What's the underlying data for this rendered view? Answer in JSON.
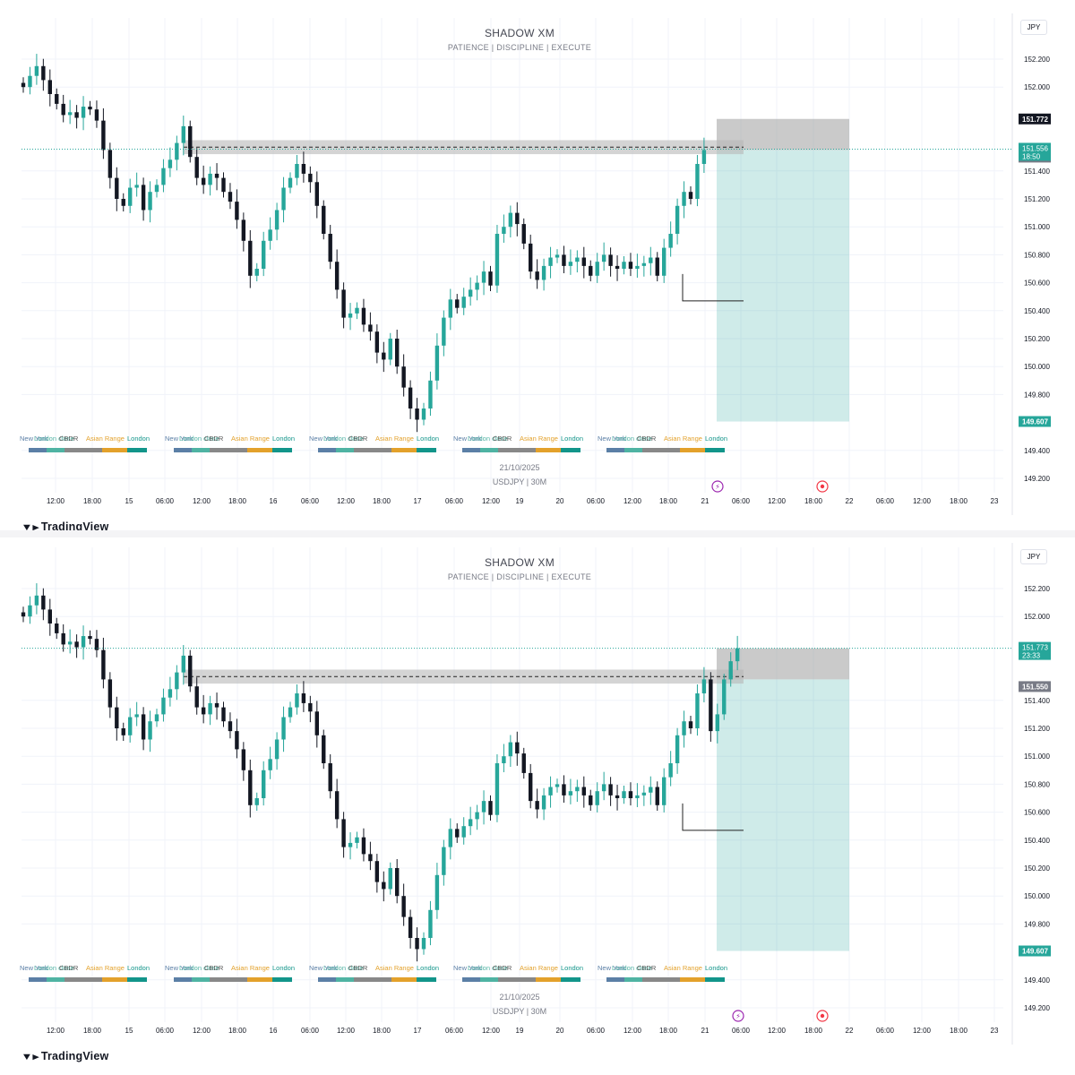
{
  "header": {
    "title": "SHADOW XM",
    "subtitle": "PATIENCE  |  DISCIPLINE  |  EXECUTE",
    "currency": "JPY"
  },
  "watermark": {
    "date": "21/10/2025",
    "symbol": "USDJPY  |  30M"
  },
  "brand": {
    "name": "TradingView",
    "icon": "tradingview-logo"
  },
  "price_axis_ticks": [
    "152.200",
    "152.000",
    "151.400",
    "151.200",
    "151.000",
    "150.800",
    "150.600",
    "150.400",
    "150.200",
    "150.000",
    "149.800",
    "149.400",
    "149.200"
  ],
  "time_axis_labels": [
    "12:00",
    "18:00",
    "15",
    "06:00",
    "12:00",
    "18:00",
    "16",
    "06:00",
    "12:00",
    "18:00",
    "17",
    "06:00",
    "12:00",
    "19",
    "20",
    "06:00",
    "12:00",
    "18:00",
    "21",
    "06:00",
    "12:00",
    "18:00",
    "22",
    "06:00",
    "12:00",
    "18:00",
    "23"
  ],
  "session_labels": [
    "New York",
    "London close",
    "CBDR",
    "Asian Range",
    "London"
  ],
  "session_colors": {
    "newyork": "#5b7fa6",
    "londonclose": "#4fb3a3",
    "cbdr": "#888888",
    "asian": "#e3a12b",
    "london": "#12958a"
  },
  "colors": {
    "up": "#26a69a",
    "down": "#131722",
    "target_zone": "#26a69a",
    "stop_zone": "#9e9e9e",
    "supply_zone": "#b8b8b8",
    "event_purple": "#9c27b0",
    "event_red": "#f23645"
  },
  "panels": [
    {
      "current_price": "151.556",
      "countdown": "18:50",
      "labels": {
        "stop": "151.772",
        "entry": "151.550",
        "target": "149.607"
      }
    },
    {
      "current_price": "151.773",
      "countdown": "23:33",
      "labels": {
        "stop": "151.772",
        "entry": "151.550",
        "target": "149.607"
      }
    }
  ],
  "chart_data": [
    {
      "type": "candlestick",
      "symbol": "USDJPY",
      "timeframe": "30M",
      "y_axis": {
        "min": 149.1,
        "max": 152.3,
        "ticks": [
          152.2,
          152.0,
          151.4,
          151.2,
          151.0,
          150.8,
          150.6,
          150.4,
          150.2,
          150.0,
          149.8,
          149.4,
          149.2
        ]
      },
      "closes": [
        152.0,
        152.08,
        152.15,
        152.05,
        151.95,
        151.88,
        151.8,
        151.82,
        151.78,
        151.86,
        151.84,
        151.76,
        151.55,
        151.35,
        151.2,
        151.15,
        151.28,
        151.3,
        151.12,
        151.25,
        151.3,
        151.42,
        151.48,
        151.6,
        151.72,
        151.5,
        151.35,
        151.3,
        151.38,
        151.35,
        151.25,
        151.18,
        151.05,
        150.9,
        150.65,
        150.7,
        150.9,
        150.98,
        151.12,
        151.28,
        151.35,
        151.45,
        151.38,
        151.32,
        151.15,
        150.95,
        150.75,
        150.55,
        150.35,
        150.38,
        150.42,
        150.3,
        150.25,
        150.1,
        150.05,
        150.2,
        150.0,
        149.85,
        149.7,
        149.62,
        149.7,
        149.9,
        150.15,
        150.35,
        150.48,
        150.42,
        150.5,
        150.55,
        150.6,
        150.68,
        150.58,
        150.95,
        151.0,
        151.1,
        151.02,
        150.88,
        150.68,
        150.62,
        150.72,
        150.78,
        150.8,
        150.72,
        150.75,
        150.78,
        150.72,
        150.65,
        150.75,
        150.8,
        150.72,
        150.7,
        150.75,
        150.7,
        150.72,
        150.74,
        150.78,
        150.65,
        150.85,
        150.95,
        151.15,
        151.25,
        151.2,
        151.45,
        151.55
      ],
      "last_price": 151.556,
      "supply_zone": [
        151.52,
        151.62
      ],
      "entry_level": 151.55,
      "position": {
        "type": "short",
        "entry": 151.55,
        "stop": 151.772,
        "target": 149.607
      },
      "horizontal_line": 150.47
    },
    {
      "type": "candlestick",
      "symbol": "USDJPY",
      "timeframe": "30M",
      "y_axis": {
        "min": 149.1,
        "max": 152.3,
        "ticks": [
          152.2,
          152.0,
          151.4,
          151.2,
          151.0,
          150.8,
          150.6,
          150.4,
          150.2,
          150.0,
          149.8,
          149.4,
          149.2
        ]
      },
      "closes": [
        152.0,
        152.08,
        152.15,
        152.05,
        151.95,
        151.88,
        151.8,
        151.82,
        151.78,
        151.86,
        151.84,
        151.76,
        151.55,
        151.35,
        151.2,
        151.15,
        151.28,
        151.3,
        151.12,
        151.25,
        151.3,
        151.42,
        151.48,
        151.6,
        151.72,
        151.5,
        151.35,
        151.3,
        151.38,
        151.35,
        151.25,
        151.18,
        151.05,
        150.9,
        150.65,
        150.7,
        150.9,
        150.98,
        151.12,
        151.28,
        151.35,
        151.45,
        151.38,
        151.32,
        151.15,
        150.95,
        150.75,
        150.55,
        150.35,
        150.38,
        150.42,
        150.3,
        150.25,
        150.1,
        150.05,
        150.2,
        150.0,
        149.85,
        149.7,
        149.62,
        149.7,
        149.9,
        150.15,
        150.35,
        150.48,
        150.42,
        150.5,
        150.55,
        150.6,
        150.68,
        150.58,
        150.95,
        151.0,
        151.1,
        151.02,
        150.88,
        150.68,
        150.62,
        150.72,
        150.78,
        150.8,
        150.72,
        150.75,
        150.78,
        150.72,
        150.65,
        150.75,
        150.8,
        150.72,
        150.7,
        150.75,
        150.7,
        150.72,
        150.74,
        150.78,
        150.65,
        150.85,
        150.95,
        151.15,
        151.25,
        151.2,
        151.45,
        151.55,
        151.18,
        151.3,
        151.55,
        151.68,
        151.773
      ],
      "last_price": 151.773,
      "supply_zone": [
        151.52,
        151.62
      ],
      "entry_level": 151.55,
      "position": {
        "type": "short",
        "entry": 151.55,
        "stop": 151.772,
        "target": 149.607
      },
      "horizontal_line": 150.47
    }
  ]
}
